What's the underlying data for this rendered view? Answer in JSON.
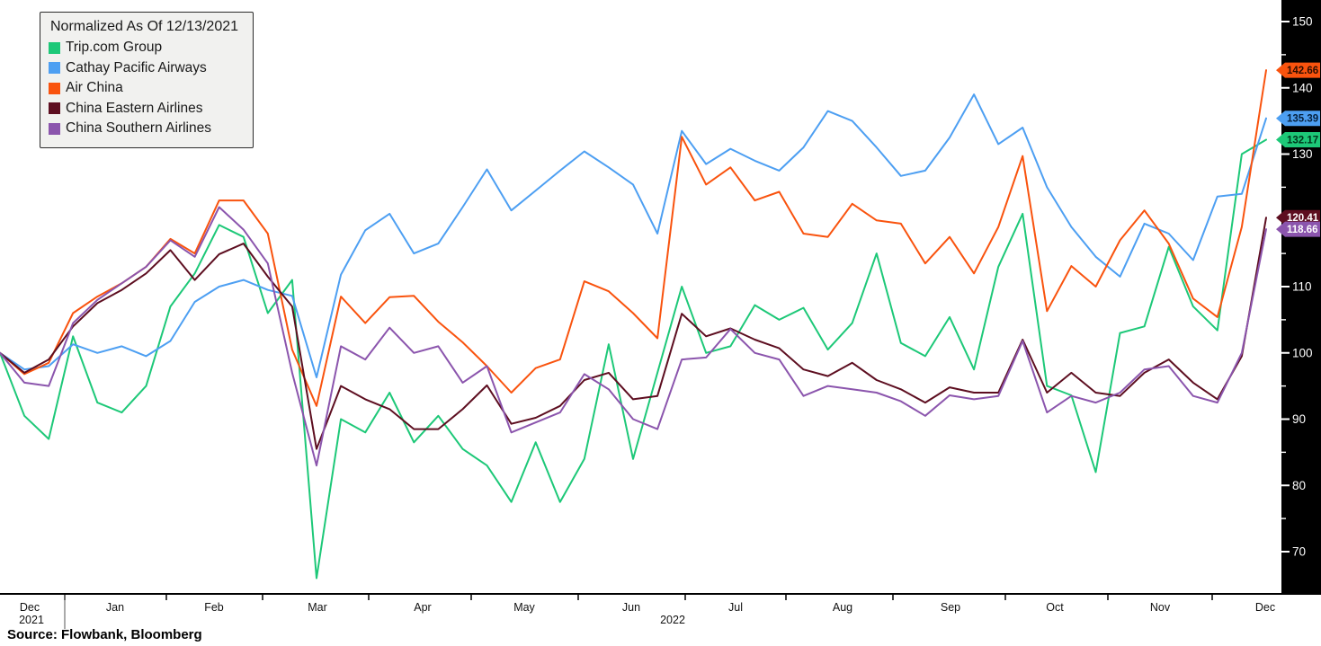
{
  "chart_data": {
    "type": "line",
    "title": "Normalized As Of 12/13/2021",
    "source": "Source: Flowbank, Bloomberg",
    "legend_position": "top-left",
    "grid": false,
    "ylim": [
      64,
      153
    ],
    "y_axis": {
      "major_ticks": [
        150,
        140,
        130,
        120,
        110,
        100,
        90,
        80,
        70
      ],
      "minor_ticks": [
        145,
        135,
        125,
        115,
        105,
        95,
        85,
        75
      ]
    },
    "x_axis": {
      "months": [
        "Dec",
        "Jan",
        "Feb",
        "Mar",
        "Apr",
        "May",
        "Jun",
        "Jul",
        "Aug",
        "Sep",
        "Oct",
        "Nov",
        "Dec"
      ],
      "years": [
        "2021",
        "2022"
      ]
    },
    "x": [
      "2021-12-13",
      "2021-12-20",
      "2021-12-27",
      "2022-01-03",
      "2022-01-10",
      "2022-01-17",
      "2022-01-24",
      "2022-01-31",
      "2022-02-07",
      "2022-02-14",
      "2022-02-21",
      "2022-02-28",
      "2022-03-07",
      "2022-03-14",
      "2022-03-21",
      "2022-03-28",
      "2022-04-04",
      "2022-04-11",
      "2022-04-18",
      "2022-04-25",
      "2022-05-02",
      "2022-05-09",
      "2022-05-16",
      "2022-05-23",
      "2022-05-30",
      "2022-06-06",
      "2022-06-13",
      "2022-06-20",
      "2022-06-27",
      "2022-07-04",
      "2022-07-11",
      "2022-07-18",
      "2022-07-25",
      "2022-08-01",
      "2022-08-08",
      "2022-08-15",
      "2022-08-22",
      "2022-08-29",
      "2022-09-05",
      "2022-09-12",
      "2022-09-19",
      "2022-09-26",
      "2022-10-03",
      "2022-10-10",
      "2022-10-17",
      "2022-10-24",
      "2022-10-31",
      "2022-11-07",
      "2022-11-14",
      "2022-11-21",
      "2022-11-28",
      "2022-12-05",
      "2022-12-12"
    ],
    "series": [
      {
        "name": "Trip.com Group",
        "color": "#1dc878",
        "end_label": "132.17",
        "label_text_color": "#00331a",
        "values": [
          100,
          90.5,
          87,
          102.5,
          92.5,
          91,
          95,
          107,
          112,
          119.3,
          117.5,
          106,
          111,
          66,
          90,
          88,
          94,
          86.5,
          90.5,
          85.5,
          83,
          77.5,
          86.5,
          77.5,
          84,
          101.3,
          84,
          97,
          110,
          100,
          101,
          107.2,
          105,
          106.8,
          100.5,
          104.5,
          115,
          101.5,
          99.5,
          105.4,
          97.5,
          113,
          121,
          95,
          93.6,
          82,
          103,
          104,
          116,
          107,
          103.4,
          130,
          132.17
        ]
      },
      {
        "name": "Cathay Pacific Airways",
        "color": "#4d9ff2",
        "end_label": "135.39",
        "label_text_color": "#05203d",
        "values": [
          100,
          97.5,
          98,
          101.3,
          100,
          101,
          99.5,
          101.8,
          107.7,
          110,
          111,
          109.5,
          108.6,
          96.3,
          111.8,
          118.5,
          121,
          115,
          116.5,
          122,
          127.7,
          121.5,
          124.5,
          127.5,
          130.4,
          128,
          125.4,
          118,
          133.5,
          128.5,
          130.8,
          129,
          127.5,
          131,
          136.5,
          135,
          131,
          126.7,
          127.5,
          132.5,
          139,
          131.5,
          134,
          125,
          119,
          114.5,
          111.5,
          119.5,
          118,
          114,
          123.6,
          124,
          135.39
        ]
      },
      {
        "name": "Air China",
        "color": "#f9530e",
        "end_label": "142.66",
        "label_text_color": "#2d0d00",
        "values": [
          100,
          96.8,
          98.5,
          106,
          108.5,
          110.5,
          113,
          117.2,
          115,
          123,
          123,
          118,
          100.5,
          92,
          108.5,
          104.5,
          108.4,
          108.6,
          104.7,
          101.6,
          98,
          94,
          97.7,
          99,
          110.8,
          109.3,
          106,
          102.2,
          132.6,
          125.4,
          128,
          123,
          124.3,
          118,
          117.5,
          122.5,
          120,
          119.5,
          113.5,
          117.5,
          112,
          119,
          129.7,
          106.3,
          113.1,
          110,
          117,
          121.5,
          116.5,
          108.2,
          105.4,
          119,
          142.66
        ]
      },
      {
        "name": "China Eastern Airlines",
        "color": "#5d0e20",
        "end_label": "120.41",
        "label_text_color": "#ffffff",
        "values": [
          100,
          97,
          99,
          104,
          107.5,
          109.5,
          112,
          115.5,
          111,
          114.9,
          116.5,
          111.5,
          107,
          85.5,
          95,
          93,
          91.5,
          88.5,
          88.5,
          91.5,
          95.1,
          89.3,
          90.2,
          92,
          95.9,
          97,
          93,
          93.5,
          105.9,
          102.5,
          103.7,
          102,
          100.7,
          97.5,
          96.5,
          98.5,
          95.9,
          94.5,
          92.5,
          94.8,
          94,
          94,
          102,
          94,
          97,
          94,
          93.5,
          97,
          99,
          95.5,
          93,
          99.5,
          120.41
        ]
      },
      {
        "name": "China Southern Airlines",
        "color": "#8b55ad",
        "end_label": "118.66",
        "label_text_color": "#ffffff",
        "values": [
          100,
          95.5,
          95,
          104.5,
          108,
          110.5,
          113,
          117,
          114.5,
          122,
          118.6,
          113.5,
          97,
          83,
          101,
          99,
          103.8,
          100,
          101,
          95.5,
          98,
          88,
          89.5,
          91,
          96.8,
          94.5,
          90,
          88.5,
          99,
          99.3,
          103.6,
          100,
          99,
          93.5,
          95,
          94.5,
          94,
          92.7,
          90.5,
          93.6,
          93,
          93.5,
          101.8,
          91,
          93.5,
          92.5,
          94,
          97.5,
          98,
          93.5,
          92.5,
          100,
          118.66
        ]
      }
    ]
  }
}
